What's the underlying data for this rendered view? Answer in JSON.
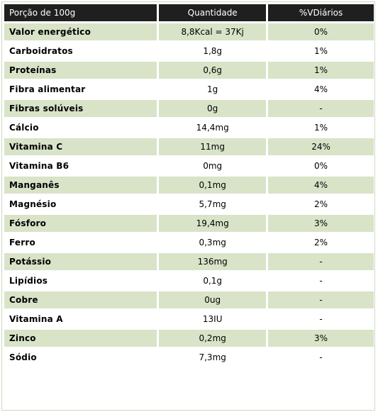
{
  "table": {
    "headers": [
      "Porção de 100g",
      "Quantidade",
      "%VDiários"
    ],
    "rows": [
      {
        "name": "Valor energético",
        "quantidade": "8,8Kcal = 37Kj",
        "vd": "0%"
      },
      {
        "name": "Carboidratos",
        "quantidade": "1,8g",
        "vd": "1%"
      },
      {
        "name": "Proteínas",
        "quantidade": "0,6g",
        "vd": "1%"
      },
      {
        "name": "Fibra alimentar",
        "quantidade": "1g",
        "vd": "4%"
      },
      {
        "name": "Fibras solúveis",
        "quantidade": "0g",
        "vd": "-"
      },
      {
        "name": "Cálcio",
        "quantidade": "14,4mg",
        "vd": "1%"
      },
      {
        "name": "Vitamina C",
        "quantidade": "11mg",
        "vd": "24%"
      },
      {
        "name": "Vitamina B6",
        "quantidade": "0mg",
        "vd": "0%"
      },
      {
        "name": "Manganês",
        "quantidade": "0,1mg",
        "vd": "4%"
      },
      {
        "name": "Magnésio",
        "quantidade": "5,7mg",
        "vd": "2%"
      },
      {
        "name": "Fósforo",
        "quantidade": "19,4mg",
        "vd": "3%"
      },
      {
        "name": "Ferro",
        "quantidade": "0,3mg",
        "vd": "2%"
      },
      {
        "name": "Potássio",
        "quantidade": "136mg",
        "vd": "-"
      },
      {
        "name": "Lipídios",
        "quantidade": "0,1g",
        "vd": "-"
      },
      {
        "name": "Cobre",
        "quantidade": "0ug",
        "vd": "-"
      },
      {
        "name": "Vitamina A",
        "quantidade": "13IU",
        "vd": "-"
      },
      {
        "name": "Zinco",
        "quantidade": "0,2mg",
        "vd": "3%"
      },
      {
        "name": "Sódio",
        "quantidade": "7,3mg",
        "vd": "-"
      }
    ]
  },
  "colors": {
    "header_bg": "#1f1f1f",
    "header_text": "#ffffff",
    "row_shaded": "#d8e3c8",
    "row_plain": "#ffffff"
  }
}
